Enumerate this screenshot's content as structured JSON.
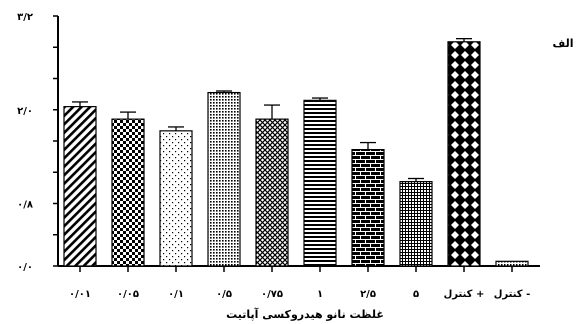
{
  "chart_data": {
    "type": "bar",
    "panel_label": "الف",
    "xlabel": "غلظت نانو هیدروکسی آپاتیت",
    "ylabel": "",
    "ylim": [
      0,
      3.2
    ],
    "yticks": [
      {
        "value": 0,
        "label": "۰/۰"
      },
      {
        "value": 0.8,
        "label": "۰/۸"
      },
      {
        "value": 2.0,
        "label": "۲/۰"
      },
      {
        "value": 3.2,
        "label": "۳/۲"
      }
    ],
    "categories": [
      "۰/۰۱",
      "۰/۰۵",
      "۰/۱",
      "۰/۵",
      "۰/۷۵",
      "۱",
      "۲/۵",
      "۵",
      "کنترل +",
      "کنترل -"
    ],
    "values": [
      2.04,
      1.88,
      1.73,
      2.22,
      1.88,
      2.12,
      1.49,
      1.08,
      2.87,
      0.06
    ],
    "errors": [
      0.06,
      0.09,
      0.05,
      0.02,
      0.18,
      0.03,
      0.09,
      0.04,
      0.04,
      0.0
    ],
    "grid": false,
    "legend": "none"
  }
}
